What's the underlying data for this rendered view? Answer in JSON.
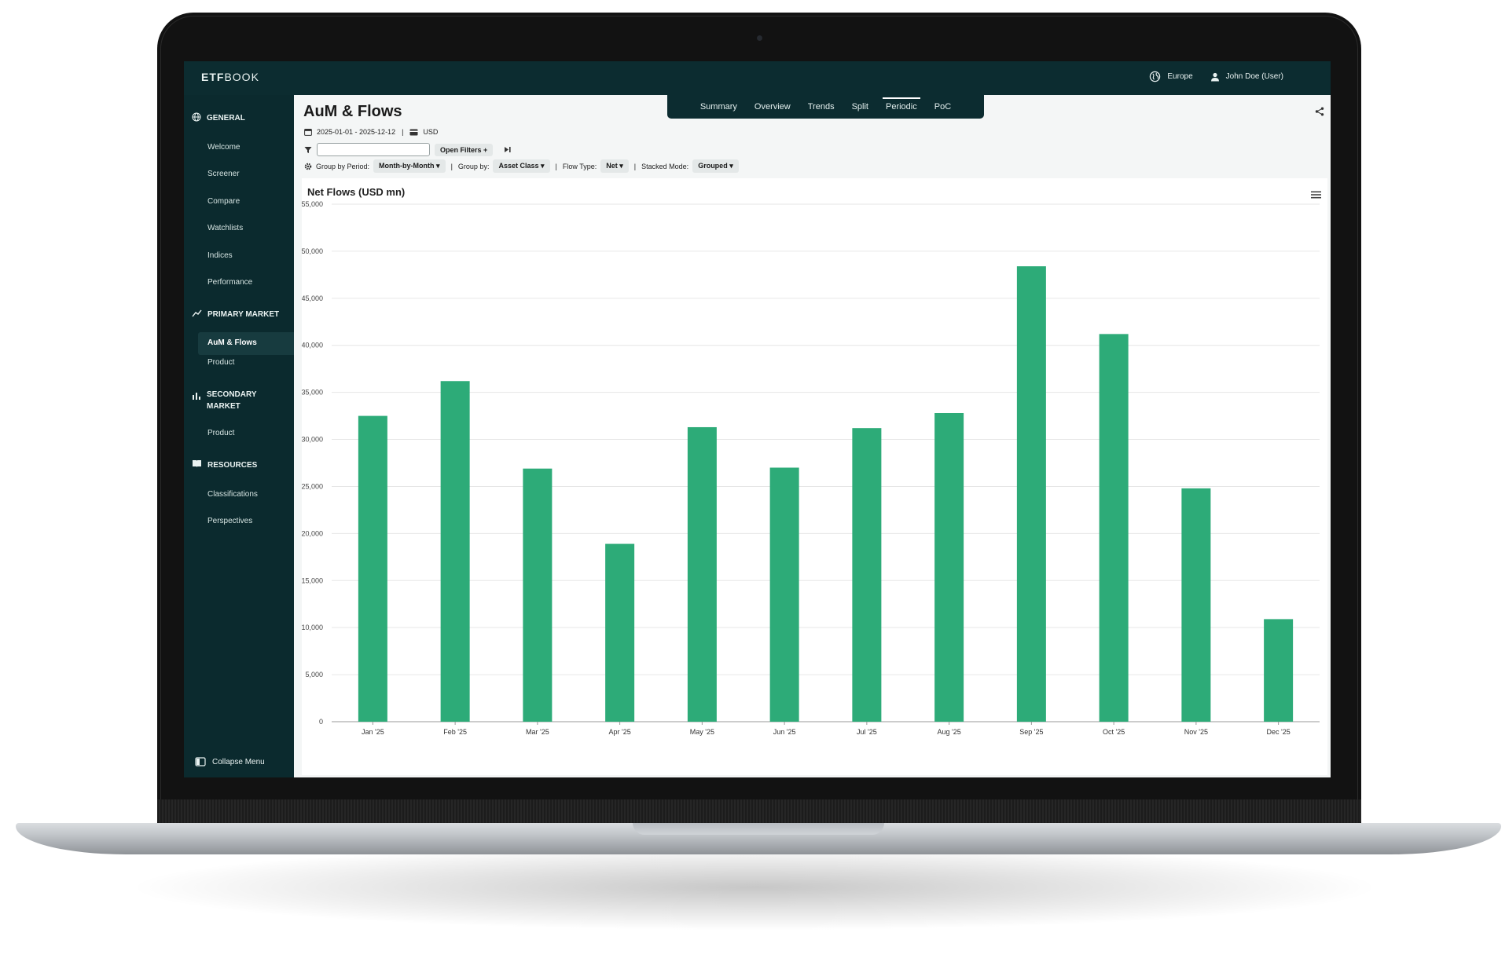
{
  "app": {
    "logo_bold": "ETF",
    "logo_rest": "BOOK"
  },
  "topbar": {
    "region": "Europe",
    "user": "John Doe (User)"
  },
  "sidebar": {
    "general": "GENERAL",
    "general_items": [
      "Welcome",
      "Screener",
      "Compare",
      "Watchlists",
      "Indices",
      "Performance"
    ],
    "primary": "PRIMARY MARKET",
    "primary_items": [
      "AuM & Flows",
      "Product"
    ],
    "secondary_line1": "SECONDARY",
    "secondary_line2": "MARKET",
    "secondary_items": [
      "Product"
    ],
    "resources": "RESOURCES",
    "resources_items": [
      "Classifications",
      "Perspectives"
    ],
    "collapse": "Collapse Menu"
  },
  "page": {
    "title": "AuM & Flows",
    "tabs": [
      "Summary",
      "Overview",
      "Trends",
      "Split",
      "Periodic",
      "PoC"
    ],
    "active_tab": "Periodic",
    "date_range": "2025-01-01 - 2025-12-12",
    "currency": "USD",
    "filter_input": "",
    "open_filters": "Open Filters",
    "group_by_period_label": "Group by Period:",
    "group_by_period_value": "Month-by-Month",
    "group_by_label": "Group by:",
    "group_by_value": "Asset Class",
    "flow_type_label": "Flow Type:",
    "flow_type_value": "Net",
    "stacked_mode_label": "Stacked Mode:",
    "stacked_mode_value": "Grouped"
  },
  "colors": {
    "bar": "#2dab78",
    "sidebar": "#0b2a2e",
    "grid": "#e6e6e6"
  },
  "chart_data": {
    "type": "bar",
    "title": "Net Flows (USD mn)",
    "categories": [
      "Jan '25",
      "Feb '25",
      "Mar '25",
      "Apr '25",
      "May '25",
      "Jun '25",
      "Jul '25",
      "Aug '25",
      "Sep '25",
      "Oct '25",
      "Nov '25",
      "Dec '25"
    ],
    "values": [
      32500,
      36200,
      26900,
      18900,
      31300,
      27000,
      31200,
      32800,
      48400,
      41200,
      24800,
      10900
    ],
    "yticks": [
      "0",
      "5,000",
      "10,000",
      "15,000",
      "20,000",
      "25,000",
      "30,000",
      "35,000",
      "40,000",
      "45,000",
      "50,000",
      "55,000"
    ],
    "ylim": [
      0,
      55000
    ],
    "grid": true,
    "legend": "none"
  }
}
